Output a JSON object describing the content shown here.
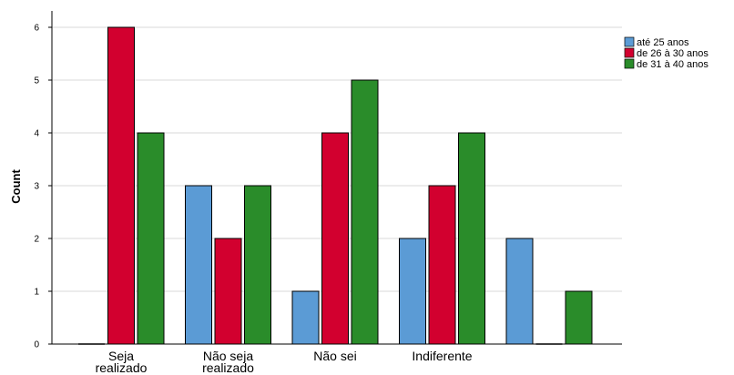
{
  "chart_data": {
    "type": "bar",
    "title": "",
    "xlabel": "",
    "ylabel": "Count",
    "ylim": [
      0,
      6.3
    ],
    "yticks": [
      0,
      1,
      2,
      3,
      4,
      5,
      6
    ],
    "grid": true,
    "legend_position": "top-right",
    "categories": [
      [
        "Seja",
        "realizado"
      ],
      [
        "Não seja",
        "realizado"
      ],
      [
        "Não sei"
      ],
      [
        "Indiferente"
      ],
      [
        ""
      ]
    ],
    "series": [
      {
        "name": "até 25 anos",
        "color": "#5b9bd5",
        "values": [
          0,
          3,
          1,
          2,
          2
        ]
      },
      {
        "name": "de 26 à 30 anos",
        "color": "#d2002f",
        "values": [
          6,
          2,
          4,
          3,
          0
        ]
      },
      {
        "name": "de 31 à 40 anos",
        "color": "#2a8c2a",
        "values": [
          4,
          3,
          5,
          4,
          1
        ]
      }
    ]
  }
}
